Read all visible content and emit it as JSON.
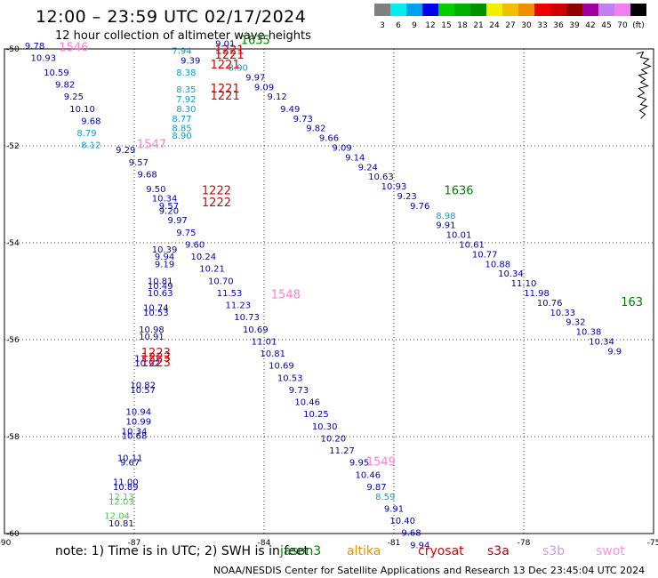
{
  "header": {
    "title": "12:00 – 23:59 UTC 02/17/2024",
    "subtitle": "12 hour collection of altimeter wave heights"
  },
  "legend": {
    "colors": [
      "#808080",
      "#00f0f0",
      "#00a0f0",
      "#0000f0",
      "#00d000",
      "#00b000",
      "#009000",
      "#f0f000",
      "#f0c000",
      "#f09000",
      "#f00000",
      "#d00000",
      "#900000",
      "#a000a0",
      "#c080f0",
      "#f080f0",
      "#000000"
    ],
    "labels": [
      "3",
      "6",
      "9",
      "12",
      "15",
      "18",
      "21",
      "24",
      "27",
      "30",
      "33",
      "36",
      "39",
      "42",
      "45",
      "70",
      "(ft)"
    ]
  },
  "map": {
    "lon_ticks": [
      "-90",
      "-87",
      "-84",
      "-81",
      "-78",
      "-75"
    ],
    "lat_ticks": [
      "-50",
      "-52",
      "-54",
      "-56",
      "-58",
      "-60"
    ],
    "lon_range": [
      -90,
      -75
    ],
    "lat_range": [
      -50,
      -60
    ],
    "land_icon": "coastline-fragment"
  },
  "chart_data": {
    "type": "scatter",
    "xlabel": "",
    "ylabel": "",
    "xlim": [
      -90,
      -75
    ],
    "ylim": [
      -60,
      -50
    ],
    "series": [
      {
        "color": "#0000c0",
        "points": [
          {
            "x": -89.3,
            "y": -50.0,
            "label": "9.78"
          },
          {
            "x": -89.1,
            "y": -50.25,
            "label": "10.93"
          },
          {
            "x": -88.8,
            "y": -50.55,
            "label": "10.59"
          },
          {
            "x": -88.6,
            "y": -50.8,
            "label": "9.82"
          },
          {
            "x": -88.4,
            "y": -51.05,
            "label": "9.25"
          },
          {
            "x": -88.2,
            "y": -51.3,
            "label": "10.10"
          },
          {
            "x": -88.0,
            "y": -51.55,
            "label": "9.68"
          },
          {
            "x": -87.2,
            "y": -52.15,
            "label": "9.29"
          },
          {
            "x": -86.9,
            "y": -52.4,
            "label": "9.57"
          },
          {
            "x": -86.7,
            "y": -52.65,
            "label": "9.68"
          },
          {
            "x": -86.5,
            "y": -52.95,
            "label": "9.50"
          },
          {
            "x": -86.3,
            "y": -53.15,
            "label": "10.34"
          },
          {
            "x": -86.2,
            "y": -53.3,
            "label": "9.57"
          },
          {
            "x": -86.2,
            "y": -53.4,
            "label": "9.20"
          },
          {
            "x": -86.0,
            "y": -53.6,
            "label": "9.97"
          },
          {
            "x": -85.8,
            "y": -53.85,
            "label": "9.75"
          },
          {
            "x": -85.6,
            "y": -54.1,
            "label": "9.60"
          },
          {
            "x": -86.3,
            "y": -54.2,
            "label": "10.39"
          },
          {
            "x": -86.3,
            "y": -54.35,
            "label": "9.94"
          },
          {
            "x": -86.3,
            "y": -54.5,
            "label": "9.19"
          },
          {
            "x": -85.4,
            "y": -54.35,
            "label": "10.24"
          },
          {
            "x": -85.2,
            "y": -54.6,
            "label": "10.21"
          },
          {
            "x": -85.0,
            "y": -54.85,
            "label": "10.70"
          },
          {
            "x": -86.4,
            "y": -54.85,
            "label": "10.81"
          },
          {
            "x": -86.4,
            "y": -54.95,
            "label": "10.49"
          },
          {
            "x": -86.4,
            "y": -55.1,
            "label": "10.63"
          },
          {
            "x": -84.8,
            "y": -55.1,
            "label": "11.53"
          },
          {
            "x": -84.6,
            "y": -55.35,
            "label": "11.23"
          },
          {
            "x": -86.5,
            "y": -55.4,
            "label": "10.74"
          },
          {
            "x": -86.5,
            "y": -55.5,
            "label": "10.53"
          },
          {
            "x": -84.4,
            "y": -55.6,
            "label": "10.73"
          },
          {
            "x": -84.2,
            "y": -55.85,
            "label": "10.69"
          },
          {
            "x": -86.6,
            "y": -55.85,
            "label": "10.98"
          },
          {
            "x": -86.6,
            "y": -56.0,
            "label": "10.91"
          },
          {
            "x": -84.0,
            "y": -56.1,
            "label": "11.01"
          },
          {
            "x": -83.8,
            "y": -56.35,
            "label": "10.81"
          },
          {
            "x": -86.7,
            "y": -56.45,
            "label": "11.21"
          },
          {
            "x": -86.7,
            "y": -56.55,
            "label": "10.92"
          },
          {
            "x": -83.6,
            "y": -56.6,
            "label": "10.69"
          },
          {
            "x": -83.4,
            "y": -56.85,
            "label": "10.53"
          },
          {
            "x": -86.8,
            "y": -57.0,
            "label": "10.82"
          },
          {
            "x": -86.8,
            "y": -57.1,
            "label": "10.57"
          },
          {
            "x": -83.2,
            "y": -57.1,
            "label": "9.73"
          },
          {
            "x": -83.0,
            "y": -57.35,
            "label": "10.46"
          },
          {
            "x": -86.9,
            "y": -57.55,
            "label": "10.94"
          },
          {
            "x": -82.8,
            "y": -57.6,
            "label": "10.25"
          },
          {
            "x": -86.9,
            "y": -57.75,
            "label": "10.99"
          },
          {
            "x": -82.6,
            "y": -57.85,
            "label": "10.30"
          },
          {
            "x": -87.0,
            "y": -57.95,
            "label": "10.34"
          },
          {
            "x": -87.0,
            "y": -58.05,
            "label": "10.68"
          },
          {
            "x": -82.4,
            "y": -58.1,
            "label": "10.20"
          },
          {
            "x": -82.2,
            "y": -58.35,
            "label": "11.27"
          },
          {
            "x": -87.1,
            "y": -58.5,
            "label": "10.11"
          },
          {
            "x": -87.1,
            "y": -58.6,
            "label": "9.67"
          },
          {
            "x": -81.8,
            "y": -58.6,
            "label": "9.95"
          },
          {
            "x": -81.6,
            "y": -58.85,
            "label": "10.46"
          },
          {
            "x": -87.2,
            "y": -59.0,
            "label": "11.00"
          },
          {
            "x": -87.2,
            "y": -59.1,
            "label": "10.89"
          },
          {
            "x": -81.4,
            "y": -59.1,
            "label": "9.87"
          },
          {
            "x": -81.0,
            "y": -59.55,
            "label": "9.91"
          },
          {
            "x": -80.8,
            "y": -59.8,
            "label": "10.40"
          },
          {
            "x": -87.3,
            "y": -59.85,
            "label": "10.81"
          },
          {
            "x": -80.6,
            "y": -60.05,
            "label": "9.68"
          },
          {
            "x": -80.4,
            "y": -60.3,
            "label": "9.94"
          },
          {
            "x": -84.9,
            "y": -49.95,
            "label": "9.01"
          },
          {
            "x": -85.7,
            "y": -50.3,
            "label": "9.39"
          },
          {
            "x": -84.2,
            "y": -50.65,
            "label": "9.97"
          },
          {
            "x": -84.0,
            "y": -50.85,
            "label": "9.09"
          },
          {
            "x": -83.7,
            "y": -51.05,
            "label": "9.12"
          },
          {
            "x": -83.4,
            "y": -51.3,
            "label": "9.49"
          },
          {
            "x": -83.1,
            "y": -51.5,
            "label": "9.73"
          },
          {
            "x": -82.8,
            "y": -51.7,
            "label": "9.82"
          },
          {
            "x": -82.5,
            "y": -51.9,
            "label": "9.66"
          },
          {
            "x": -82.2,
            "y": -52.1,
            "label": "9.09"
          },
          {
            "x": -81.9,
            "y": -52.3,
            "label": "9.14"
          },
          {
            "x": -81.6,
            "y": -52.5,
            "label": "9.24"
          },
          {
            "x": -81.3,
            "y": -52.7,
            "label": "10.63"
          },
          {
            "x": -81.0,
            "y": -52.9,
            "label": "10.93"
          },
          {
            "x": -80.7,
            "y": -53.1,
            "label": "9.23"
          },
          {
            "x": -80.4,
            "y": -53.3,
            "label": "9.76"
          },
          {
            "x": -79.8,
            "y": -53.7,
            "label": "9.91"
          },
          {
            "x": -79.5,
            "y": -53.9,
            "label": "10.01"
          },
          {
            "x": -79.2,
            "y": -54.1,
            "label": "10.61"
          },
          {
            "x": -78.9,
            "y": -54.3,
            "label": "10.77"
          },
          {
            "x": -78.6,
            "y": -54.5,
            "label": "10.88"
          },
          {
            "x": -78.3,
            "y": -54.7,
            "label": "10.34"
          },
          {
            "x": -78.0,
            "y": -54.9,
            "label": "11.10"
          },
          {
            "x": -77.7,
            "y": -55.1,
            "label": "11.98"
          },
          {
            "x": -77.4,
            "y": -55.3,
            "label": "10.76"
          },
          {
            "x": -77.1,
            "y": -55.5,
            "label": "10.33"
          },
          {
            "x": -76.8,
            "y": -55.7,
            "label": "9.32"
          },
          {
            "x": -76.5,
            "y": -55.9,
            "label": "10.38"
          },
          {
            "x": -76.2,
            "y": -56.1,
            "label": "10.34"
          },
          {
            "x": -75.9,
            "y": -56.3,
            "label": "9.9"
          }
        ]
      },
      {
        "color": "#00a0e0",
        "points": [
          {
            "x": -85.9,
            "y": -50.1,
            "label": "7.94"
          },
          {
            "x": -85.8,
            "y": -50.55,
            "label": "8.38"
          },
          {
            "x": -84.6,
            "y": -50.45,
            "label": "8.90"
          },
          {
            "x": -85.8,
            "y": -50.9,
            "label": "8.35"
          },
          {
            "x": -85.8,
            "y": -51.1,
            "label": "7.92"
          },
          {
            "x": -85.8,
            "y": -51.3,
            "label": "8.30"
          },
          {
            "x": -85.9,
            "y": -51.5,
            "label": "8.77"
          },
          {
            "x": -85.9,
            "y": -51.7,
            "label": "8.85"
          },
          {
            "x": -85.9,
            "y": -51.85,
            "label": "8.90"
          },
          {
            "x": -88.1,
            "y": -51.8,
            "label": "8.79"
          },
          {
            "x": -88.0,
            "y": -52.05,
            "label": "8.12"
          },
          {
            "x": -79.8,
            "y": -53.5,
            "label": "8.98"
          },
          {
            "x": -81.2,
            "y": -59.3,
            "label": "8.59"
          }
        ]
      },
      {
        "color": "#40d040",
        "points": [
          {
            "x": -87.3,
            "y": -59.3,
            "label": "12.13"
          },
          {
            "x": -87.3,
            "y": -59.4,
            "label": "12.03"
          },
          {
            "x": -87.4,
            "y": -59.7,
            "label": "12.04"
          }
        ]
      },
      {
        "color": "#008000",
        "points": [
          {
            "x": -84.2,
            "y": -49.9,
            "label": "1635"
          },
          {
            "x": -79.5,
            "y": -53.0,
            "label": "1636"
          },
          {
            "x": -75.5,
            "y": -55.3,
            "label": "163"
          }
        ]
      },
      {
        "color": "#e00000",
        "points": [
          {
            "x": -84.8,
            "y": -50.1,
            "label": "1221"
          },
          {
            "x": -84.8,
            "y": -50.2,
            "label": "1221"
          },
          {
            "x": -84.9,
            "y": -50.4,
            "label": "1221"
          },
          {
            "x": -84.9,
            "y": -50.9,
            "label": "1221"
          },
          {
            "x": -84.9,
            "y": -51.05,
            "label": "1221"
          },
          {
            "x": -85.1,
            "y": -53.0,
            "label": "1222"
          },
          {
            "x": -85.1,
            "y": -53.25,
            "label": "1222"
          },
          {
            "x": -86.5,
            "y": -56.35,
            "label": "1223"
          },
          {
            "x": -86.5,
            "y": -56.45,
            "label": "1223"
          },
          {
            "x": -86.5,
            "y": -56.55,
            "label": "1223"
          }
        ]
      },
      {
        "color": "#ff80d0",
        "points": [
          {
            "x": -88.4,
            "y": -50.05,
            "label": "1546"
          },
          {
            "x": -86.6,
            "y": -52.05,
            "label": "1547"
          },
          {
            "x": -83.5,
            "y": -55.15,
            "label": "1548"
          },
          {
            "x": -81.3,
            "y": -58.6,
            "label": "1549"
          }
        ]
      }
    ]
  },
  "footer": {
    "note": "note:  1) Time is in UTC;  2) SWH is in feet",
    "credit": "NOAA/NESDIS Center for Satellite Applications and Research    13 Dec 23:45:04 UTC 2024"
  },
  "sources": [
    {
      "name": "jason3",
      "label": "jason3",
      "color": "#008000"
    },
    {
      "name": "altika",
      "label": "altika",
      "color": "#f09000"
    },
    {
      "name": "cryosat",
      "label": "cryosat",
      "color": "#e00000"
    },
    {
      "name": "s3a",
      "label": "s3a",
      "color": "#c00000"
    },
    {
      "name": "s3b",
      "label": "s3b",
      "color": "#c0a0f0"
    },
    {
      "name": "swot",
      "label": "swot",
      "color": "#ff90e0"
    }
  ]
}
